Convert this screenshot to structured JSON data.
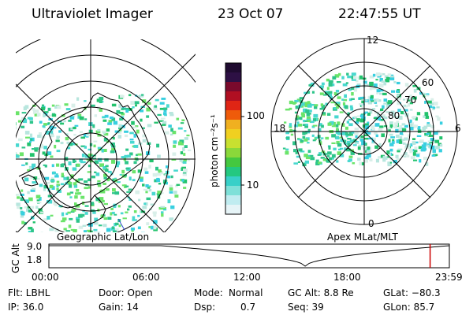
{
  "header": {
    "title": "Ultraviolet Imager",
    "date": "23 Oct 07",
    "time": "22:47:55 UT"
  },
  "colors": {
    "dots": [
      "#2ec58a",
      "#48d8d0",
      "#6be46a",
      "#38cfe0",
      "#b8e6de",
      "#d9efe9",
      "#23c36d"
    ],
    "scale_bar_top_to_bottom": [
      "#1f0b30",
      "#2d1044",
      "#7a0a2c",
      "#b00f22",
      "#e02515",
      "#ef5b0a",
      "#f0b020",
      "#f0d020",
      "#c8e030",
      "#8ad83a",
      "#44c840",
      "#24c880",
      "#38d0c8",
      "#7ee0d8",
      "#c0ecf0",
      "#e6f4f7"
    ],
    "orbit_marker": "#cc0000",
    "coast": "#000000"
  },
  "left_panel": {
    "caption": "Geographic Lat/Lon"
  },
  "right_panel": {
    "caption": "Apex MLat/MLT",
    "mlt_labels": {
      "top": "12",
      "left": "18",
      "right": "6",
      "bottom": "0"
    },
    "lat_labels": [
      "60",
      "70",
      "80"
    ]
  },
  "color_scale": {
    "unit_label": "photon cm⁻²s⁻¹",
    "ticks": [
      "100",
      "10"
    ]
  },
  "altitude_strip": {
    "y_label": "GC Alt",
    "y_ticks": [
      "9.0",
      "1.8"
    ],
    "x_ticks": [
      "00:00",
      "06:00",
      "12:00",
      "18:00",
      "23:59"
    ],
    "current_time_fraction": 0.952
  },
  "status": {
    "filter": "Flt: LBHL",
    "ip": "IP: 36.0",
    "door": "Door: Open",
    "gain": "Gain: 14",
    "mode_label": "Mode:",
    "mode_value": "Normal",
    "dsp_label": "Dsp:",
    "dsp_value": "0.7",
    "gc_alt": "GC Alt: 8.8 Re",
    "seq": "Seq: 39",
    "glat": "GLat: −80.3",
    "glon": "GLon: 85.7"
  }
}
